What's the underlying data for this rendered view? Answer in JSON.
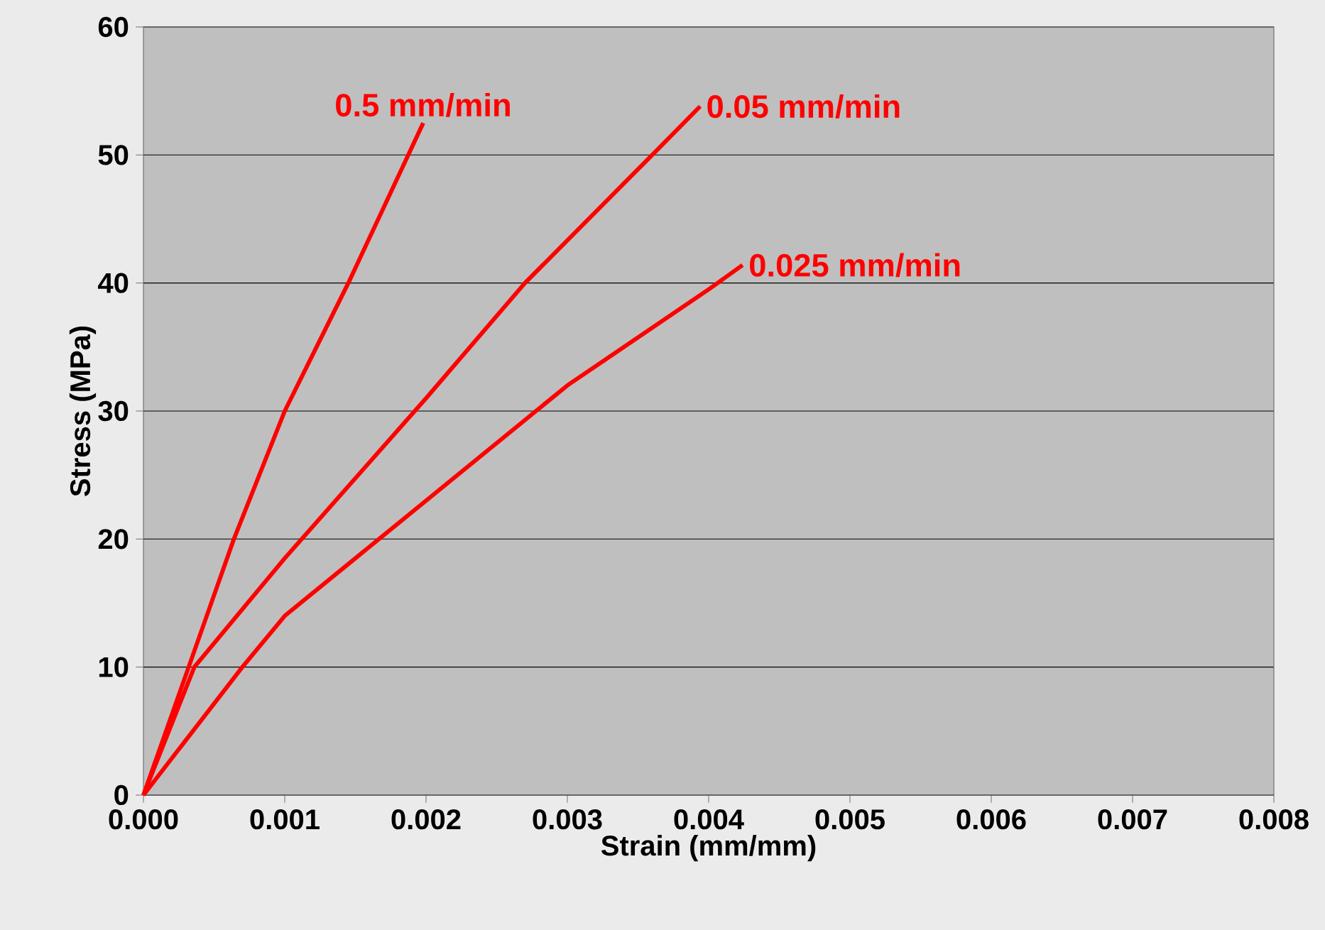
{
  "chart_data": {
    "type": "line",
    "xlabel": "Strain (mm/mm)",
    "ylabel": "Stress (MPa)",
    "xlim": [
      0,
      0.008
    ],
    "ylim": [
      0,
      60
    ],
    "xticks": [
      {
        "value": 0,
        "label": "0.000"
      },
      {
        "value": 0.001,
        "label": "0.001"
      },
      {
        "value": 0.002,
        "label": "0.002"
      },
      {
        "value": 0.003,
        "label": "0.003"
      },
      {
        "value": 0.004,
        "label": "0.004"
      },
      {
        "value": 0.005,
        "label": "0.005"
      },
      {
        "value": 0.006,
        "label": "0.006"
      },
      {
        "value": 0.007,
        "label": "0.007"
      },
      {
        "value": 0.008,
        "label": "0.008"
      }
    ],
    "yticks": [
      0,
      10,
      20,
      30,
      40,
      50,
      60
    ],
    "grid": "y",
    "marker": "none",
    "line_style": "solid",
    "legend": false,
    "series": [
      {
        "name": "0.5 mm/min",
        "color": "#ff0000",
        "x": [
          0,
          0.00032,
          0.00064,
          0.001,
          0.00145,
          0.00198
        ],
        "values": [
          0,
          10,
          20,
          30,
          40,
          52.5
        ]
      },
      {
        "name": "0.05 mm/min",
        "color": "#ff0000",
        "x": [
          0,
          0.00036,
          0.001,
          0.002,
          0.0027,
          0.0036,
          0.00394
        ],
        "values": [
          0,
          10,
          18.5,
          31,
          40,
          50,
          53.8
        ]
      },
      {
        "name": "0.025 mm/min",
        "color": "#ff0000",
        "x": [
          0,
          0.0007,
          0.001,
          0.002,
          0.003,
          0.004,
          0.00424
        ],
        "values": [
          0,
          10,
          14,
          23,
          32,
          39.5,
          41.4
        ]
      }
    ]
  }
}
